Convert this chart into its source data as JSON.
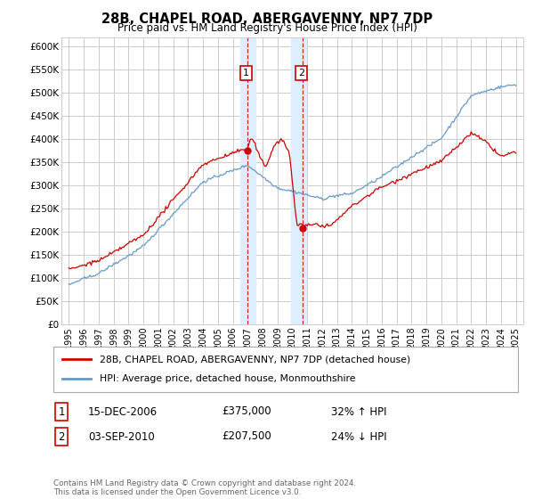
{
  "title1": "28B, CHAPEL ROAD, ABERGAVENNY, NP7 7DP",
  "title2": "Price paid vs. HM Land Registry's House Price Index (HPI)",
  "ylabel_ticks": [
    "£0",
    "£50K",
    "£100K",
    "£150K",
    "£200K",
    "£250K",
    "£300K",
    "£350K",
    "£400K",
    "£450K",
    "£500K",
    "£550K",
    "£600K"
  ],
  "ytick_values": [
    0,
    50000,
    100000,
    150000,
    200000,
    250000,
    300000,
    350000,
    400000,
    450000,
    500000,
    550000,
    600000
  ],
  "ylim": [
    0,
    620000
  ],
  "xlim_start": 1994.5,
  "xlim_end": 2025.5,
  "xticks": [
    1995,
    1996,
    1997,
    1998,
    1999,
    2000,
    2001,
    2002,
    2003,
    2004,
    2005,
    2006,
    2007,
    2008,
    2009,
    2010,
    2011,
    2012,
    2013,
    2014,
    2015,
    2016,
    2017,
    2018,
    2019,
    2020,
    2021,
    2022,
    2023,
    2024,
    2025
  ],
  "sale1_x": 2006.96,
  "sale1_y": 375000,
  "sale2_x": 2010.67,
  "sale2_y": 207500,
  "highlight1_x_start": 2006.5,
  "highlight1_x_end": 2007.5,
  "highlight2_x_start": 2009.9,
  "highlight2_x_end": 2010.9,
  "legend_label_red": "28B, CHAPEL ROAD, ABERGAVENNY, NP7 7DP (detached house)",
  "legend_label_blue": "HPI: Average price, detached house, Monmouthshire",
  "annotation1_label": "1",
  "annotation1_date": "15-DEC-2006",
  "annotation1_price": "£375,000",
  "annotation1_hpi": "32% ↑ HPI",
  "annotation2_label": "2",
  "annotation2_date": "03-SEP-2010",
  "annotation2_price": "£207,500",
  "annotation2_hpi": "24% ↓ HPI",
  "footer": "Contains HM Land Registry data © Crown copyright and database right 2024.\nThis data is licensed under the Open Government Licence v3.0.",
  "red_color": "#cc0000",
  "blue_color": "#6699cc",
  "grid_color": "#cccccc",
  "highlight_color": "#ddeeff",
  "background_color": "#ffffff"
}
